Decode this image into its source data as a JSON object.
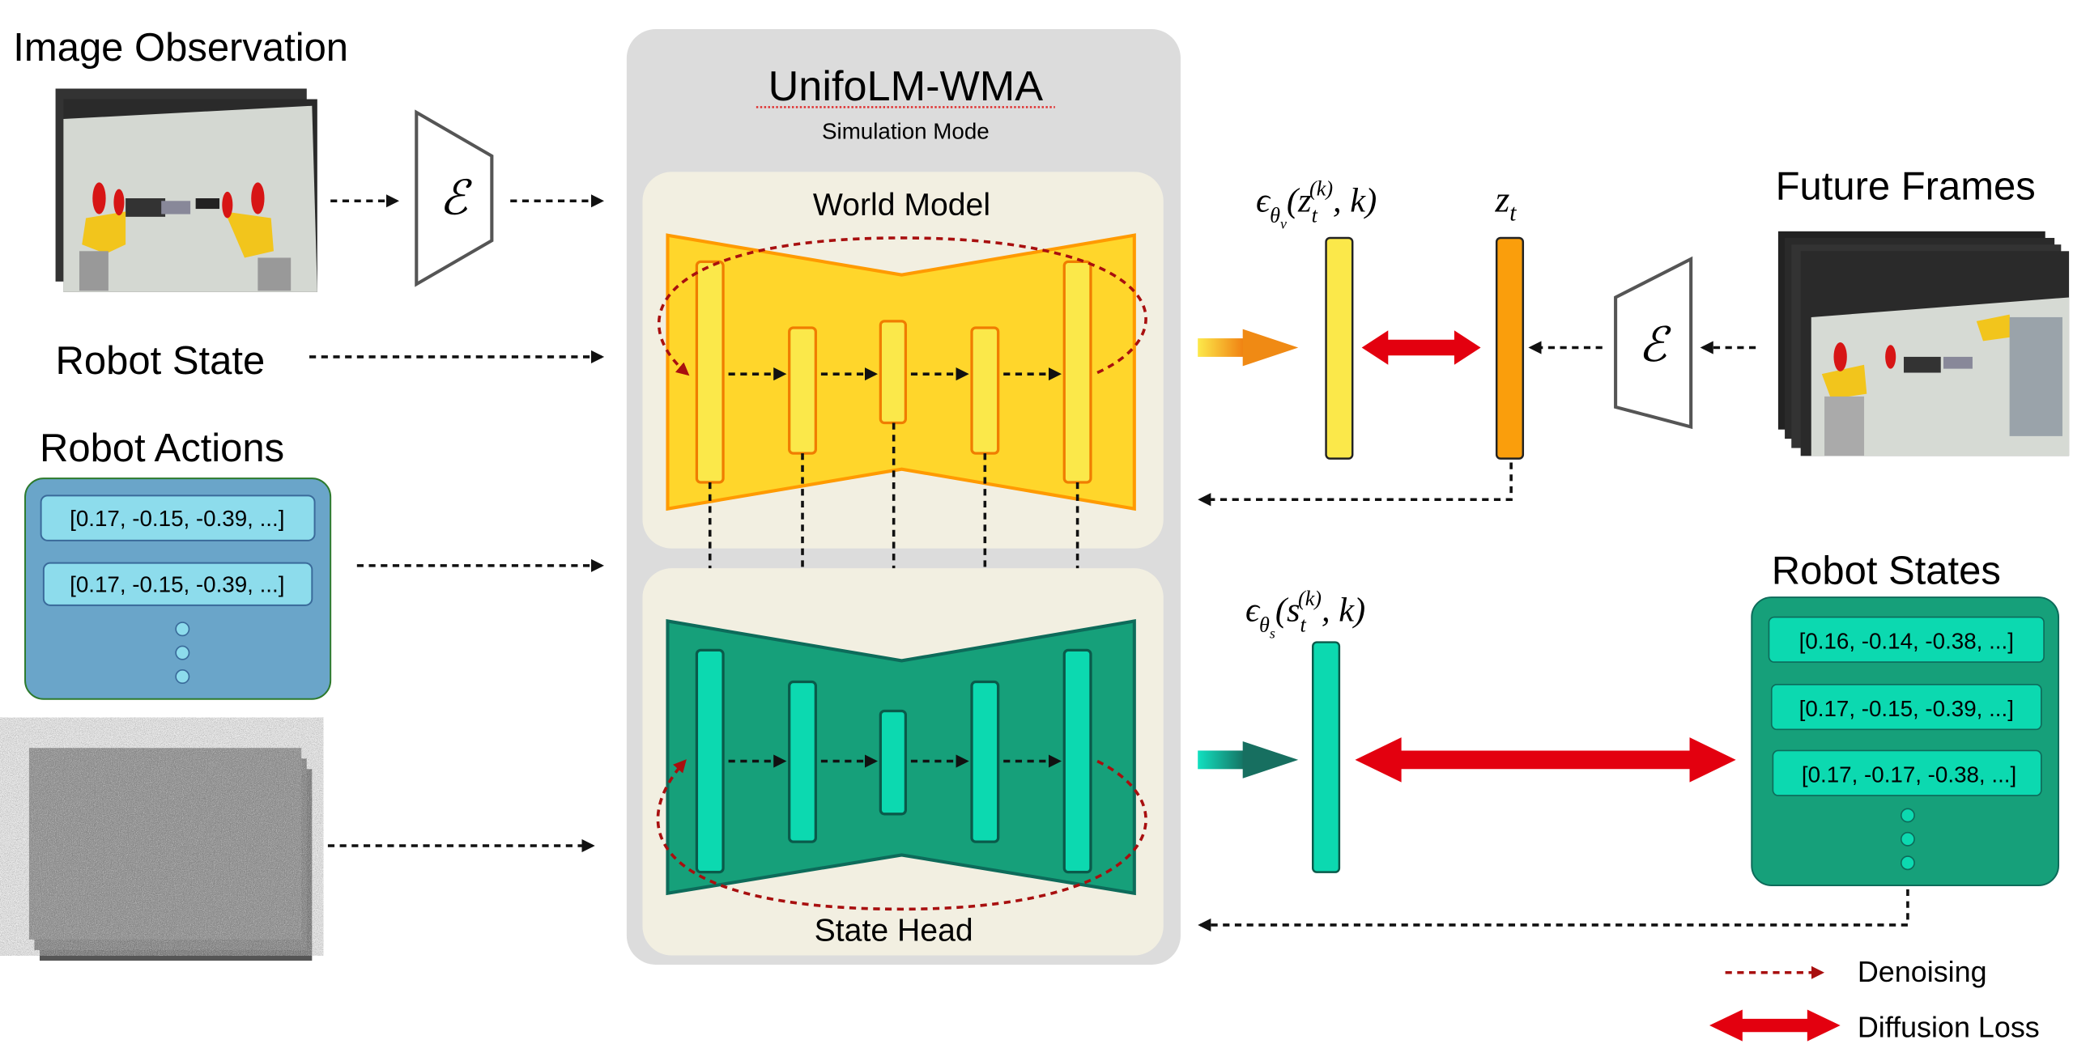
{
  "inputs": {
    "image_observation": "Image Observation",
    "robot_state": "Robot State",
    "robot_actions": "Robot Actions",
    "action_rows": [
      "[0.17, -0.15, -0.39, ...]",
      "[0.17, -0.15, -0.39, ...]"
    ]
  },
  "encoder_symbol": "ℰ",
  "model": {
    "title": "UnifoLM-WMA",
    "subtitle": "Simulation Mode",
    "world_model": "World Model",
    "state_head": "State Head"
  },
  "math": {
    "video_eps": {
      "eps": "ϵ",
      "theta": "θ",
      "sub": "v",
      "open": "(z",
      "t": "t",
      "k": "(k)",
      "close": ", k)"
    },
    "state_eps": {
      "eps": "ϵ",
      "theta": "θ",
      "sub": "s",
      "open": "(s",
      "t": "t",
      "k": "(k)",
      "close": ", k)"
    },
    "z": "z",
    "z_sub": "t"
  },
  "outputs": {
    "future_frames": "Future Frames",
    "robot_states": "Robot States",
    "state_rows": [
      "[0.16, -0.14, -0.38, ...]",
      "[0.17, -0.15, -0.39, ...]",
      "[0.17, -0.17, -0.38, ...]"
    ]
  },
  "legend": {
    "denoising": "Denoising",
    "diffusion_loss": "Diffusion Loss"
  },
  "colors": {
    "world_model": "#ffd62b",
    "state_head": "#16a07a",
    "loss_arrow": "#e3000f",
    "denoise": "#a80f0f",
    "actions_box": "#6aa5c9"
  }
}
